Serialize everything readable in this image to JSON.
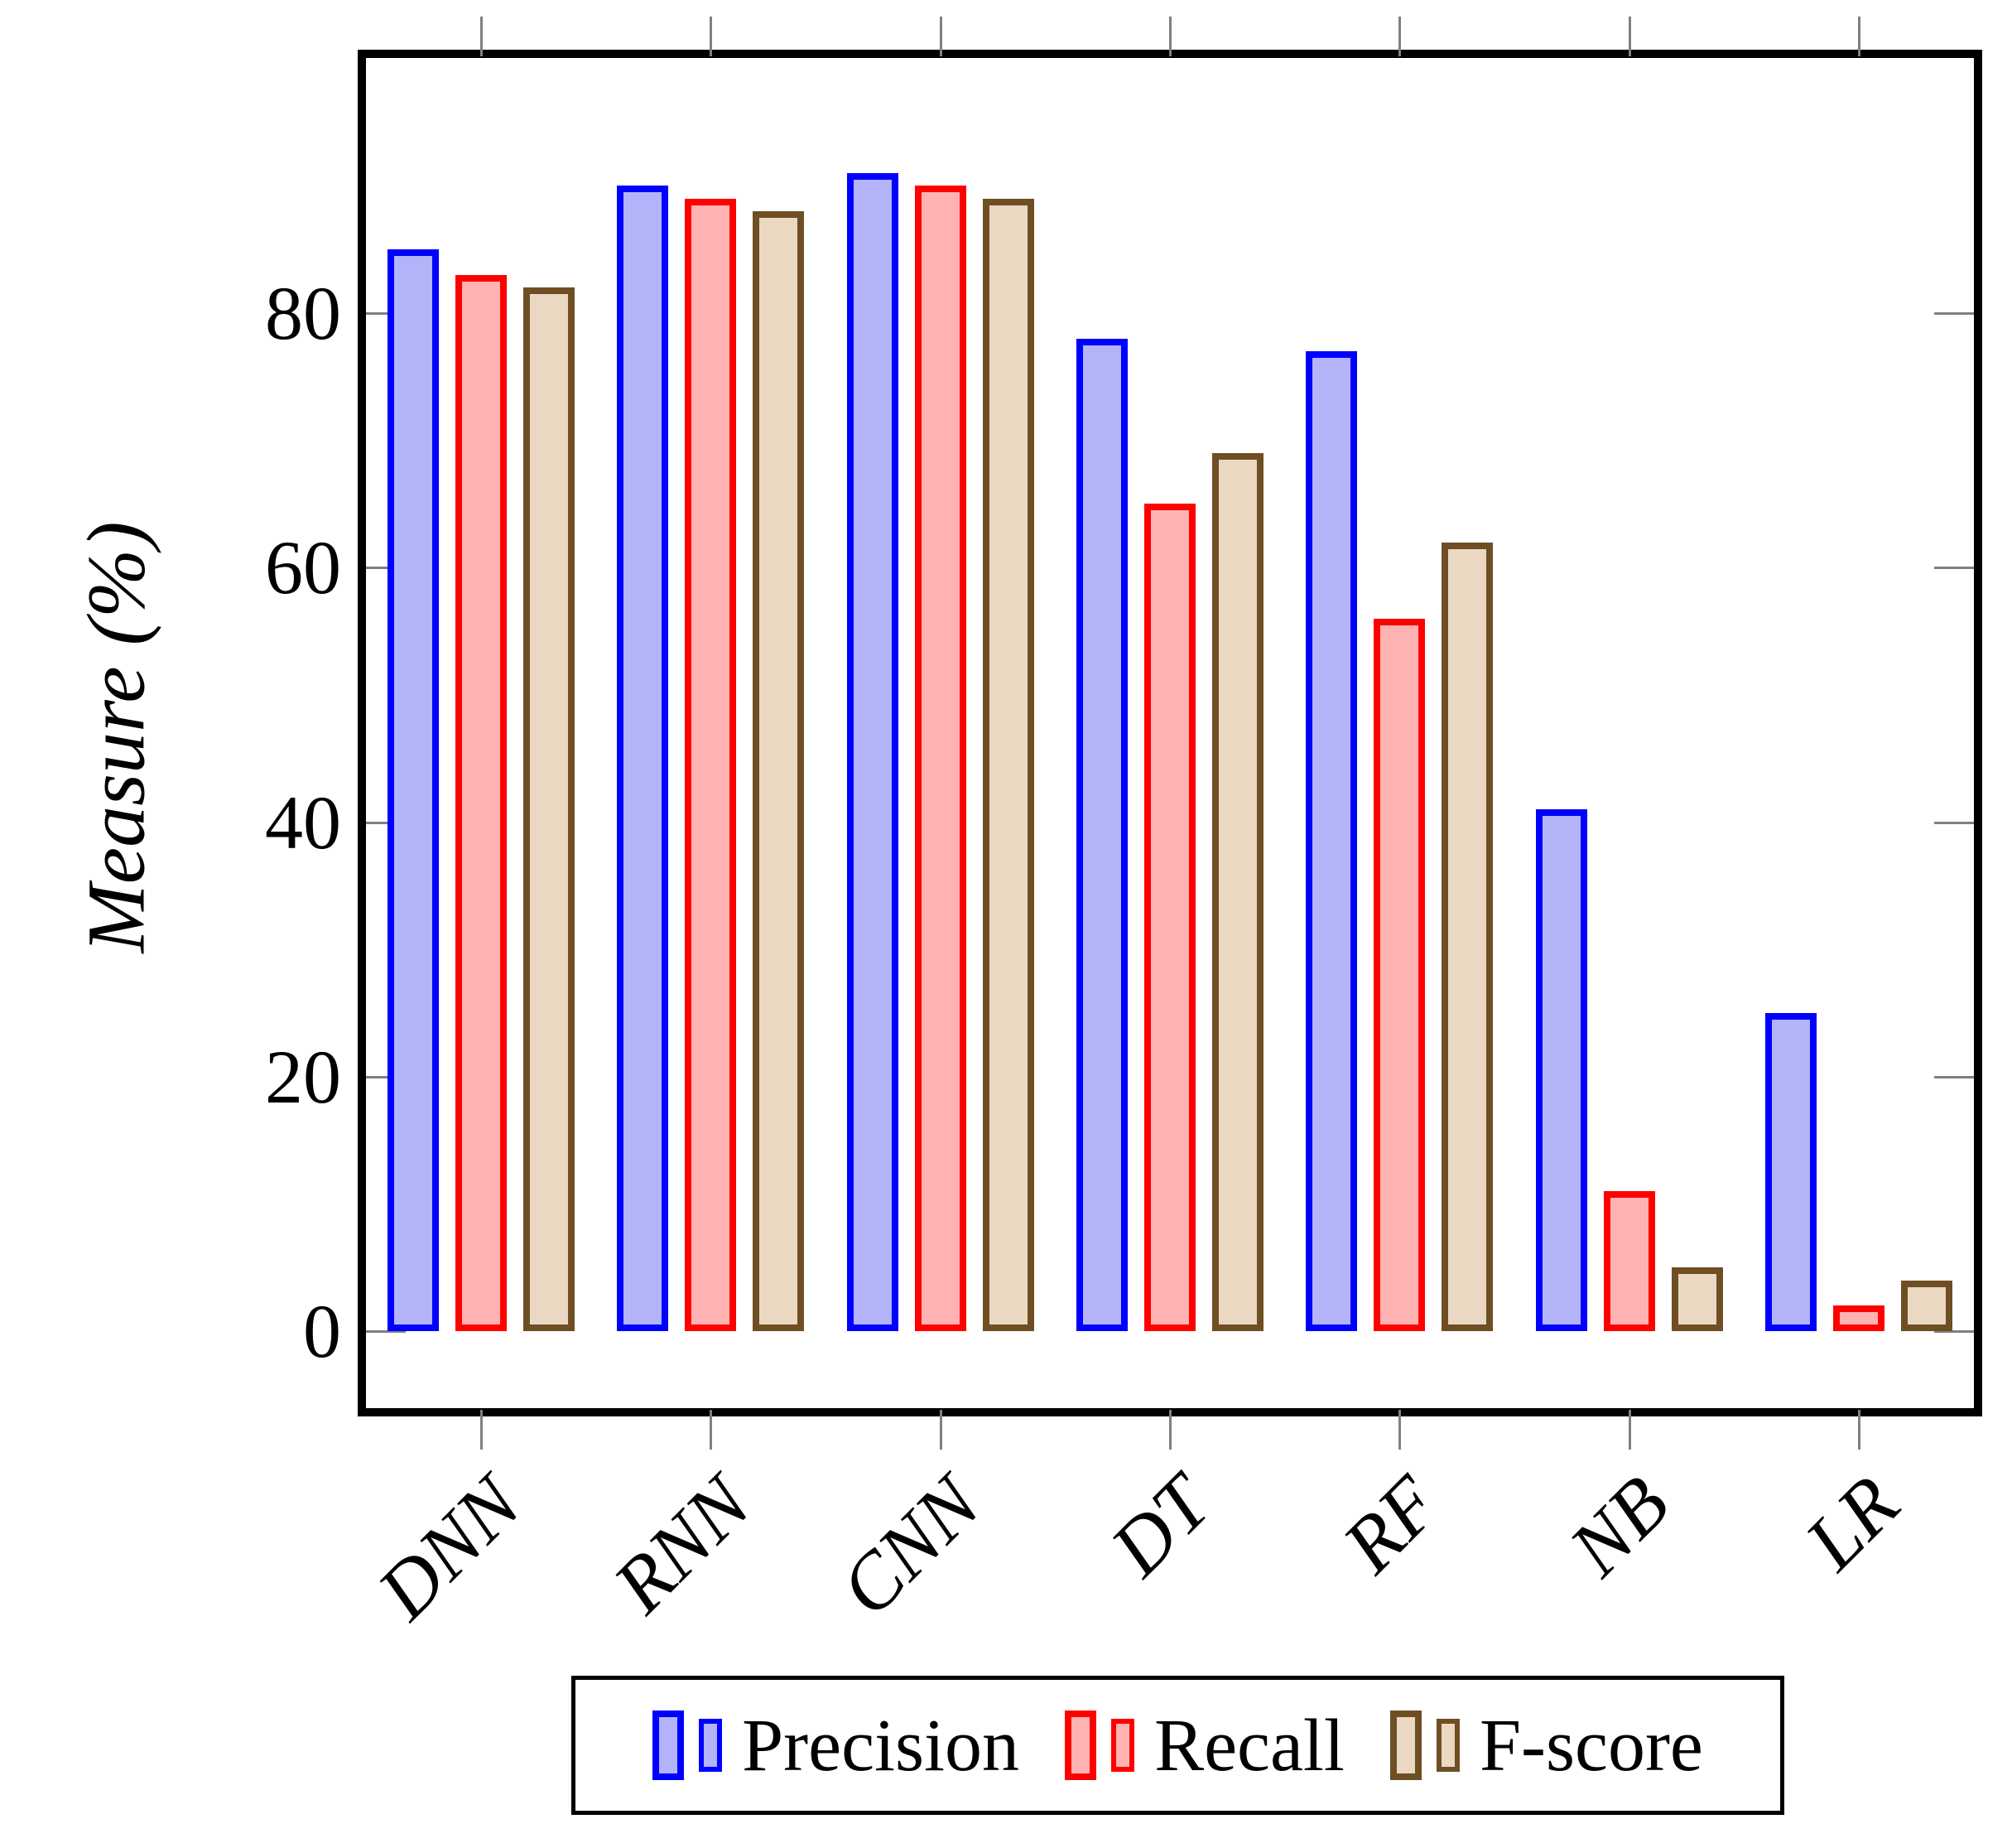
{
  "chart_data": {
    "type": "bar",
    "title": "",
    "xlabel": "",
    "ylabel": "Measure (%)",
    "categories": [
      "DNN",
      "RNN",
      "CNN",
      "DT",
      "RF",
      "NB",
      "LR"
    ],
    "series": [
      {
        "name": "Precision",
        "border_color": "#0000ff",
        "fill_color": "#b3b3fa",
        "values": [
          85,
          90,
          91,
          78,
          77,
          41,
          25
        ]
      },
      {
        "name": "Recall",
        "border_color": "#ff0000",
        "fill_color": "#ffb2b2",
        "values": [
          83,
          89,
          90,
          65,
          56,
          11,
          2
        ]
      },
      {
        "name": "F-score",
        "border_color": "#6f4e23",
        "fill_color": "#ead8c3",
        "values": [
          82,
          88,
          89,
          69,
          62,
          5,
          4
        ]
      }
    ],
    "yticks": [
      0,
      20,
      40,
      60,
      80
    ],
    "ylim": [
      0,
      100
    ],
    "grid": false,
    "legend_position": "bottom",
    "tick_color": "#808080",
    "frame_color": "#000000"
  }
}
